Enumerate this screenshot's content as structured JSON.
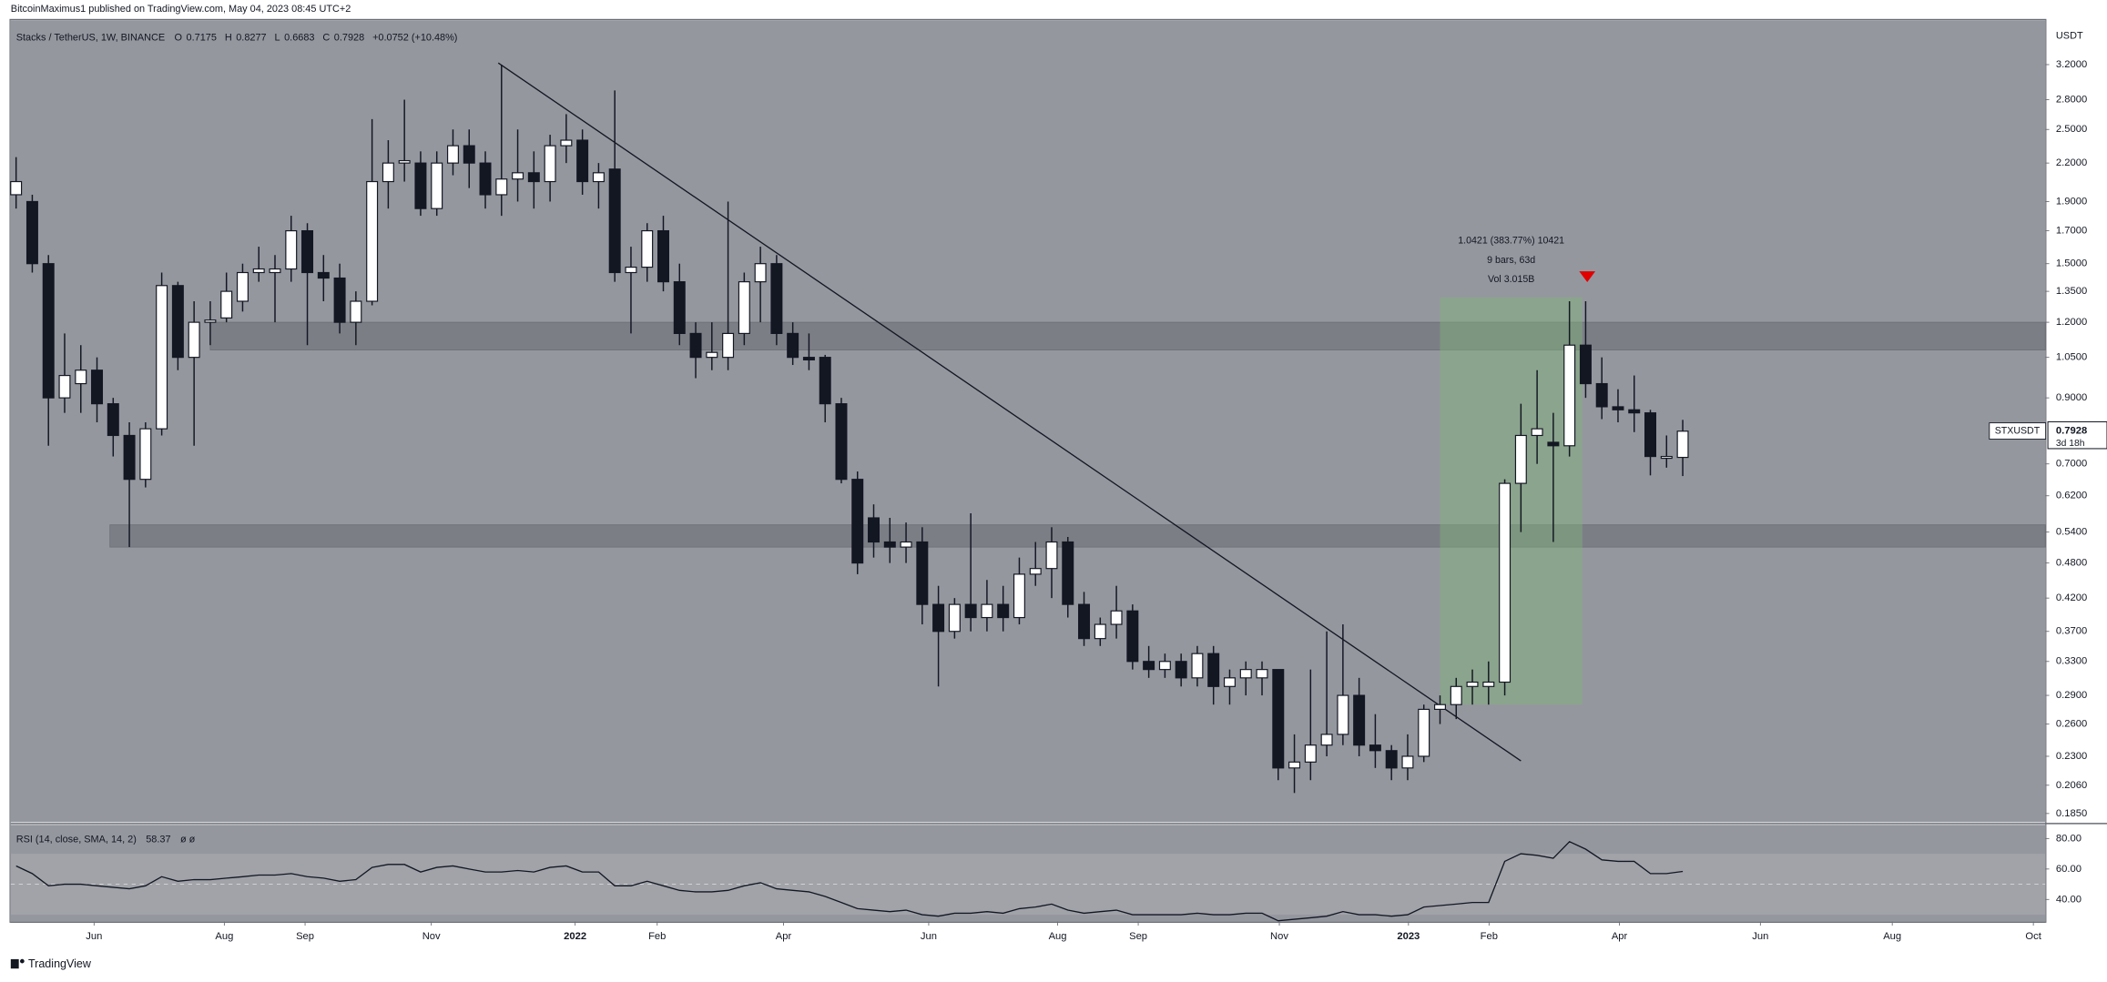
{
  "header": "BitcoinMaximus1 published on TradingView.com, May 04, 2023 08:45 UTC+2",
  "footer": "TradingView",
  "chart_data": [
    {
      "type": "candlestick",
      "title": "Stacks / TetherUS, 1W, BINANCE",
      "legend_keys": [
        "O",
        "H",
        "L",
        "C"
      ],
      "change": "+0.0752 (+10.48%)",
      "currency": "USDT",
      "symbol": "STXUSDT",
      "countdown": "3d 18h",
      "up_color": "#ffffff",
      "down_color": "#131722",
      "log": true,
      "grid": false,
      "open": [
        1.95,
        1.9,
        1.5,
        0.9,
        0.95,
        1.0,
        0.88,
        0.78,
        0.66,
        0.8,
        1.38,
        1.05,
        1.2,
        1.22,
        1.3,
        1.45,
        1.45,
        1.47,
        1.7,
        1.45,
        1.42,
        1.2,
        1.3,
        2.05,
        2.2,
        2.2,
        1.85,
        2.2,
        2.35,
        2.2,
        1.95,
        2.07,
        2.12,
        2.05,
        2.35,
        2.4,
        2.05,
        2.15,
        1.45,
        1.48,
        1.7,
        1.4,
        1.15,
        1.05,
        1.05,
        1.15,
        1.4,
        1.5,
        1.15,
        1.05,
        1.05,
        0.88,
        0.66,
        0.57,
        0.52,
        0.51,
        0.52,
        0.41,
        0.37,
        0.41,
        0.39,
        0.41,
        0.39,
        0.46,
        0.47,
        0.52,
        0.41,
        0.36,
        0.38,
        0.4,
        0.33,
        0.32,
        0.33,
        0.31,
        0.34,
        0.3,
        0.31,
        0.31,
        0.32,
        0.22,
        0.225,
        0.24,
        0.25,
        0.29,
        0.24,
        0.235,
        0.22,
        0.23,
        0.275,
        0.28,
        0.3,
        0.3,
        0.305,
        0.65,
        0.78,
        0.76,
        0.75,
        1.1,
        0.95,
        0.87,
        0.86,
        0.85,
        0.715,
        0.7175
      ],
      "high": [
        2.25,
        1.95,
        1.55,
        1.15,
        1.1,
        1.05,
        0.9,
        0.82,
        0.82,
        1.45,
        1.4,
        1.3,
        1.3,
        1.45,
        1.5,
        1.6,
        1.55,
        1.8,
        1.75,
        1.55,
        1.5,
        1.35,
        2.6,
        2.4,
        2.8,
        2.3,
        2.3,
        2.5,
        2.5,
        2.3,
        3.2,
        2.5,
        2.3,
        2.45,
        2.65,
        2.5,
        2.2,
        2.9,
        1.6,
        1.75,
        1.8,
        1.5,
        1.2,
        1.2,
        1.9,
        1.45,
        1.6,
        1.55,
        1.2,
        1.15,
        1.06,
        0.9,
        0.68,
        0.6,
        0.57,
        0.56,
        0.55,
        0.44,
        0.42,
        0.58,
        0.45,
        0.44,
        0.49,
        0.52,
        0.55,
        0.53,
        0.43,
        0.39,
        0.44,
        0.41,
        0.35,
        0.34,
        0.34,
        0.35,
        0.35,
        0.32,
        0.33,
        0.33,
        0.32,
        0.25,
        0.32,
        0.37,
        0.38,
        0.31,
        0.27,
        0.24,
        0.25,
        0.28,
        0.29,
        0.31,
        0.32,
        0.33,
        0.66,
        0.88,
        1.0,
        0.85,
        1.3,
        1.3,
        1.05,
        0.93,
        0.98,
        0.86,
        0.78,
        0.8277
      ],
      "low": [
        1.85,
        1.45,
        0.75,
        0.85,
        0.85,
        0.82,
        0.72,
        0.51,
        0.64,
        0.78,
        1.0,
        0.75,
        1.1,
        1.2,
        1.25,
        1.4,
        1.2,
        1.4,
        1.1,
        1.3,
        1.15,
        1.1,
        1.28,
        1.85,
        2.05,
        1.8,
        1.8,
        2.1,
        2.0,
        1.85,
        1.8,
        1.9,
        1.85,
        1.9,
        2.2,
        1.95,
        1.85,
        1.4,
        1.15,
        1.4,
        1.35,
        1.1,
        0.97,
        1.0,
        1.0,
        1.1,
        1.2,
        1.1,
        1.02,
        1.0,
        0.82,
        0.65,
        0.46,
        0.49,
        0.48,
        0.48,
        0.38,
        0.3,
        0.36,
        0.37,
        0.37,
        0.37,
        0.38,
        0.44,
        0.42,
        0.39,
        0.35,
        0.35,
        0.36,
        0.32,
        0.31,
        0.31,
        0.3,
        0.3,
        0.28,
        0.28,
        0.29,
        0.29,
        0.21,
        0.2,
        0.21,
        0.23,
        0.24,
        0.23,
        0.22,
        0.21,
        0.21,
        0.225,
        0.26,
        0.265,
        0.28,
        0.28,
        0.29,
        0.54,
        0.7,
        0.52,
        0.72,
        0.9,
        0.83,
        0.82,
        0.79,
        0.67,
        0.69,
        0.6683
      ],
      "close": [
        2.05,
        1.5,
        0.9,
        0.98,
        1.0,
        0.88,
        0.78,
        0.66,
        0.8,
        1.38,
        1.05,
        1.2,
        1.21,
        1.35,
        1.45,
        1.47,
        1.47,
        1.7,
        1.45,
        1.42,
        1.2,
        1.3,
        2.05,
        2.2,
        2.22,
        1.85,
        2.2,
        2.35,
        2.2,
        1.95,
        2.07,
        2.12,
        2.05,
        2.35,
        2.4,
        2.05,
        2.12,
        1.45,
        1.48,
        1.7,
        1.4,
        1.15,
        1.05,
        1.07,
        1.15,
        1.4,
        1.5,
        1.15,
        1.05,
        1.04,
        0.88,
        0.66,
        0.48,
        0.52,
        0.51,
        0.52,
        0.41,
        0.37,
        0.41,
        0.39,
        0.41,
        0.39,
        0.46,
        0.47,
        0.52,
        0.41,
        0.36,
        0.38,
        0.4,
        0.33,
        0.32,
        0.33,
        0.31,
        0.34,
        0.3,
        0.31,
        0.32,
        0.32,
        0.22,
        0.225,
        0.24,
        0.25,
        0.29,
        0.24,
        0.235,
        0.22,
        0.23,
        0.275,
        0.28,
        0.3,
        0.305,
        0.305,
        0.65,
        0.78,
        0.8,
        0.75,
        1.1,
        0.95,
        0.87,
        0.86,
        0.85,
        0.72,
        0.72,
        0.7928
      ],
      "xlim": [
        -0.33,
        125.4
      ],
      "ylim": [
        0.179,
        3.79
      ],
      "yticks": [
        {
          "value": 3.2,
          "label": "3.2000"
        },
        {
          "value": 2.8,
          "label": "2.8000"
        },
        {
          "value": 2.5,
          "label": "2.5000"
        },
        {
          "value": 2.2,
          "label": "2.2000"
        },
        {
          "value": 1.9,
          "label": "1.9000"
        },
        {
          "value": 1.7,
          "label": "1.7000"
        },
        {
          "value": 1.5,
          "label": "1.5000"
        },
        {
          "value": 1.35,
          "label": "1.3500"
        },
        {
          "value": 1.2,
          "label": "1.2000"
        },
        {
          "value": 1.05,
          "label": "1.0500"
        },
        {
          "value": 0.9,
          "label": "0.9000"
        },
        {
          "value": 0.7,
          "label": "0.7000"
        },
        {
          "value": 0.62,
          "label": "0.6200"
        },
        {
          "value": 0.54,
          "label": "0.5400"
        },
        {
          "value": 0.48,
          "label": "0.4800"
        },
        {
          "value": 0.42,
          "label": "0.4200"
        },
        {
          "value": 0.37,
          "label": "0.3700"
        },
        {
          "value": 0.33,
          "label": "0.3300"
        },
        {
          "value": 0.29,
          "label": "0.2900"
        },
        {
          "value": 0.26,
          "label": "0.2600"
        },
        {
          "value": 0.23,
          "label": "0.2300"
        },
        {
          "value": 0.206,
          "label": "0.2060"
        },
        {
          "value": 0.185,
          "label": "0.1850"
        }
      ],
      "zones": [
        {
          "low": 1.08,
          "high": 1.2,
          "start": 12.0
        },
        {
          "low": 0.51,
          "high": 0.555,
          "start": 5.8
        }
      ],
      "trendline": {
        "x": [
          29.8,
          93.0
        ],
        "y": [
          3.22,
          0.226
        ]
      },
      "measure": {
        "x": [
          88.0,
          96.8
        ],
        "y": [
          0.28,
          1.32
        ],
        "lines": [
          "1.0421 (383.77%) 10421",
          "9 bars, 63d",
          "Vol 3.015B"
        ],
        "color": "#7fb477"
      },
      "marker": {
        "x": 97.1,
        "y": 1.42,
        "color": "#e00000"
      }
    },
    {
      "type": "line",
      "title": "RSI (14, close, SMA, 14, 2)",
      "extra": "ø ø",
      "color": "#131722",
      "values": [
        62,
        57,
        49,
        50,
        50,
        49,
        48,
        47,
        49,
        55,
        52,
        53,
        53,
        54,
        55,
        56,
        56,
        57,
        55,
        54,
        52,
        53,
        61,
        63,
        63,
        58,
        61,
        62,
        60,
        58,
        58,
        59,
        58,
        61,
        62,
        58,
        58,
        49,
        49,
        52,
        49,
        46,
        45,
        45,
        46,
        49,
        51,
        47,
        46,
        45,
        42,
        38,
        34,
        33,
        32,
        33,
        30,
        29,
        31,
        31,
        32,
        31,
        34,
        35,
        37,
        33,
        31,
        32,
        33,
        30,
        30,
        30,
        30,
        31,
        30,
        30,
        31,
        31,
        26,
        27,
        28,
        29,
        32,
        30,
        30,
        29,
        30,
        35,
        36,
        37,
        38,
        38,
        65,
        70,
        69,
        67,
        78,
        73,
        66,
        65,
        65,
        57,
        57,
        58.37
      ],
      "ylim": [
        25.5,
        89
      ],
      "yticks": [
        {
          "value": 80,
          "label": "80.00"
        },
        {
          "value": 60,
          "label": "60.00"
        },
        {
          "value": 40,
          "label": "40.00"
        }
      ],
      "band": [
        30,
        70
      ],
      "midline": 50,
      "xticks": [
        {
          "value": 4.82,
          "label": "Jun"
        },
        {
          "value": 12.87,
          "label": "Aug"
        },
        {
          "value": 17.86,
          "label": "Sep"
        },
        {
          "value": 25.66,
          "label": "Nov"
        },
        {
          "value": 34.55,
          "label": "2022"
        },
        {
          "value": 39.62,
          "label": "Feb"
        },
        {
          "value": 47.43,
          "label": "Apr"
        },
        {
          "value": 56.4,
          "label": "Jun"
        },
        {
          "value": 64.37,
          "label": "Aug"
        },
        {
          "value": 69.35,
          "label": "Sep"
        },
        {
          "value": 78.07,
          "label": "Nov"
        },
        {
          "value": 86.05,
          "label": "2023"
        },
        {
          "value": 91.03,
          "label": "Feb"
        },
        {
          "value": 99.09,
          "label": "Apr"
        },
        {
          "value": 107.8,
          "label": "Jun"
        },
        {
          "value": 115.95,
          "label": "Aug"
        },
        {
          "value": 124.67,
          "label": "Oct"
        }
      ]
    }
  ]
}
